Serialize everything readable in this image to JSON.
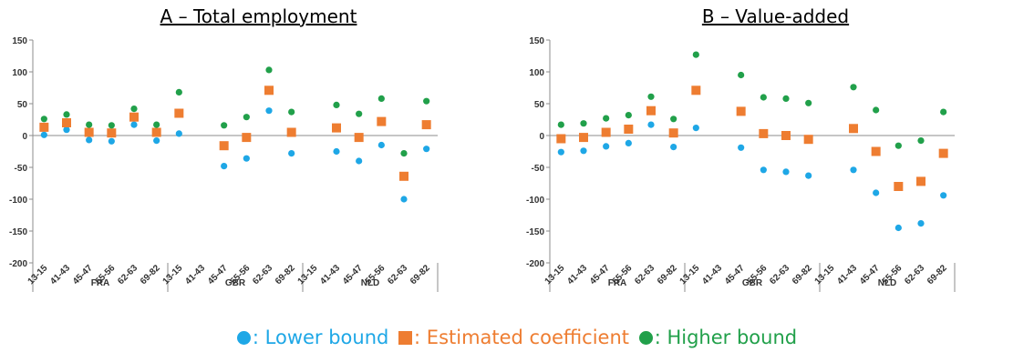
{
  "legend": {
    "lower": {
      "label": ": Lower bound",
      "color": "#1EA7E6"
    },
    "estimate": {
      "label": ": Estimated coefficient",
      "color": "#EE7D31"
    },
    "higher": {
      "label": ": Higher bound",
      "color": "#21A04A"
    }
  },
  "chart_data": [
    {
      "type": "scatter",
      "title": "A – Total employment",
      "ylim": [
        -200,
        150
      ],
      "yticks": [
        -200,
        -150,
        -100,
        -50,
        0,
        50,
        100,
        150
      ],
      "grid": false,
      "legend_position": "bottom",
      "groups": [
        "FRA",
        "GBR",
        "NLD"
      ],
      "categories": [
        "13-15",
        "41-43",
        "45-47",
        "55-56",
        "62-63",
        "69-82"
      ],
      "series": [
        {
          "name": "Lower bound",
          "marker": "circle",
          "color": "#1EA7E6",
          "values": [
            [
              1,
              9,
              -7,
              -9,
              17,
              -8
            ],
            [
              3,
              null,
              -48,
              -36,
              39,
              -28
            ],
            [
              null,
              -25,
              -40,
              -15,
              -100,
              -21
            ]
          ]
        },
        {
          "name": "Estimated coefficient",
          "marker": "square",
          "color": "#EE7D31",
          "values": [
            [
              13,
              20,
              5,
              4,
              29,
              5
            ],
            [
              35,
              null,
              -16,
              -3,
              71,
              5
            ],
            [
              null,
              12,
              -3,
              22,
              -64,
              17
            ]
          ]
        },
        {
          "name": "Higher bound",
          "marker": "circle",
          "color": "#21A04A",
          "values": [
            [
              26,
              33,
              17,
              16,
              42,
              17
            ],
            [
              68,
              null,
              16,
              29,
              103,
              37
            ],
            [
              null,
              48,
              34,
              58,
              -28,
              54
            ]
          ]
        }
      ]
    },
    {
      "type": "scatter",
      "title": "B – Value-added",
      "ylim": [
        -200,
        150
      ],
      "yticks": [
        -200,
        -150,
        -100,
        -50,
        0,
        50,
        100,
        150
      ],
      "grid": false,
      "legend_position": "bottom",
      "groups": [
        "FRA",
        "GBR",
        "NLD"
      ],
      "categories": [
        "13-15",
        "41-43",
        "45-47",
        "55-56",
        "62-63",
        "69-82"
      ],
      "series": [
        {
          "name": "Lower bound",
          "marker": "circle",
          "color": "#1EA7E6",
          "values": [
            [
              -26,
              -24,
              -17,
              -12,
              17,
              -18
            ],
            [
              12,
              null,
              -19,
              -54,
              -57,
              -63
            ],
            [
              null,
              -54,
              -90,
              -145,
              -138,
              -94
            ]
          ]
        },
        {
          "name": "Estimated coefficient",
          "marker": "square",
          "color": "#EE7D31",
          "values": [
            [
              -5,
              -3,
              5,
              10,
              39,
              4
            ],
            [
              71,
              null,
              38,
              3,
              0,
              -6
            ],
            [
              null,
              11,
              -25,
              -80,
              -72,
              -28
            ]
          ]
        },
        {
          "name": "Higher bound",
          "marker": "circle",
          "color": "#21A04A",
          "values": [
            [
              17,
              19,
              27,
              32,
              61,
              26
            ],
            [
              127,
              null,
              95,
              60,
              58,
              51
            ],
            [
              null,
              76,
              40,
              -16,
              -8,
              37
            ]
          ]
        }
      ]
    }
  ]
}
